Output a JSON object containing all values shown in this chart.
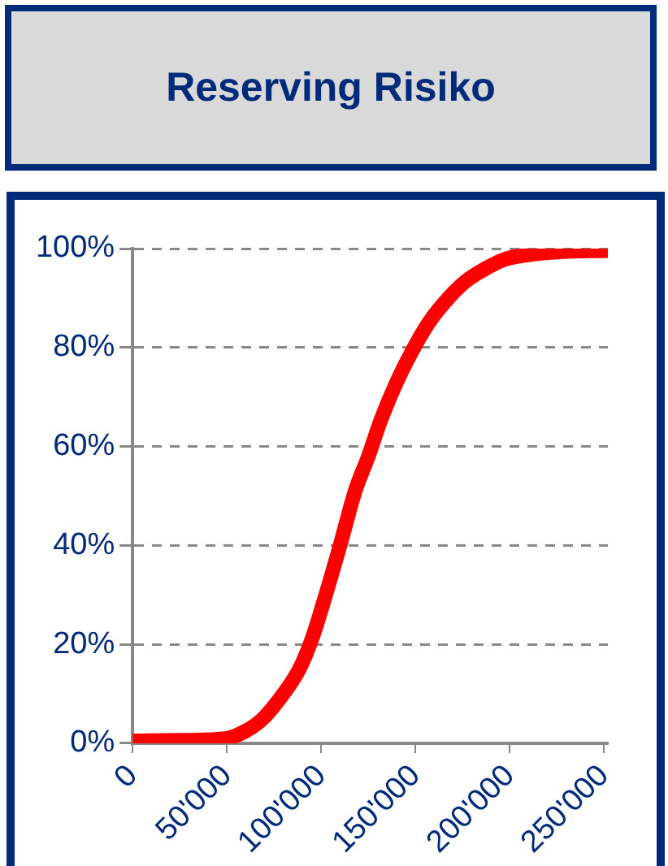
{
  "chart_data": {
    "type": "line",
    "title": "Reserving Risiko",
    "x": [
      0,
      25000,
      50000,
      60000,
      68600,
      78000,
      88400,
      95000,
      101600,
      110000,
      118000,
      125000,
      131300,
      140000,
      147800,
      157000,
      167500,
      177000,
      187300,
      197000,
      207100,
      225000,
      252000
    ],
    "series": [
      {
        "color": "#ff0000",
        "values": [
          0.5,
          0.6,
          1,
          2.5,
          4.8,
          9,
          15,
          21,
          29,
          40,
          51,
          58,
          65,
          73,
          79,
          85,
          90,
          93.5,
          96,
          97.8,
          98.6,
          99.3,
          99.6
        ]
      }
    ],
    "xlim": [
      0,
      252000
    ],
    "xticks": [
      0,
      {
        "value": 50000,
        "label": "50'000"
      },
      {
        "value": 100000,
        "label": "100'000"
      },
      {
        "value": 150000,
        "label": "150'000"
      },
      {
        "value": 200000,
        "label": "200'000"
      },
      {
        "value": 250000,
        "label": "250'000"
      }
    ],
    "ylim": [
      0,
      100
    ],
    "yticks": [
      {
        "value": 0,
        "label": "0%"
      },
      {
        "value": 20,
        "label": "20%"
      },
      {
        "value": 40,
        "label": "40%"
      },
      {
        "value": 60,
        "label": "60%"
      },
      {
        "value": 80,
        "label": "80%"
      },
      {
        "value": 100,
        "label": "100%"
      }
    ],
    "grid": "y",
    "legend": false,
    "marker": "none",
    "line_style": "solid"
  }
}
